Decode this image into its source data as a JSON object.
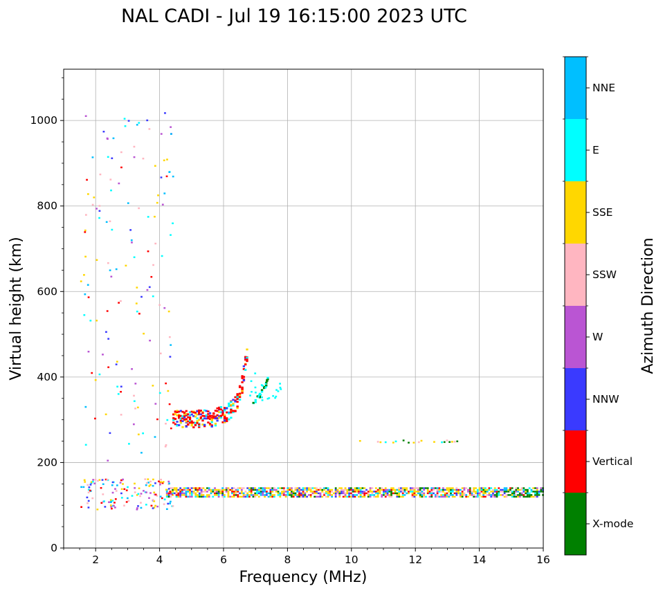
{
  "chart_data": {
    "type": "scatter",
    "title": "NAL CADI - Jul 19 16:15:00 2023 UTC",
    "xlabel": "Frequency (MHz)",
    "ylabel": "Virtual height (km)",
    "xlim": [
      1,
      16
    ],
    "ylim": [
      0,
      1120
    ],
    "xticks": [
      2,
      4,
      6,
      8,
      10,
      12,
      14,
      16
    ],
    "yticks": [
      0,
      200,
      400,
      600,
      800,
      1000
    ],
    "grid": true,
    "colorbar": {
      "label": "Azimuth Direction",
      "categories": [
        {
          "name": "NNE",
          "color": "#00bfff"
        },
        {
          "name": "E",
          "color": "#00ffff"
        },
        {
          "name": "SSE",
          "color": "#ffd700"
        },
        {
          "name": "SSW",
          "color": "#ffb6c1"
        },
        {
          "name": "W",
          "color": "#ba55d3"
        },
        {
          "name": "NNW",
          "color": "#3a3aff"
        },
        {
          "name": "Vertical",
          "color": "#ff0000"
        },
        {
          "name": "X-mode",
          "color": "#008000"
        }
      ]
    },
    "series": [
      {
        "name": "E-layer trace (mixed azimuths)",
        "description": "dense echoes from 4.2 to 16 MHz",
        "freq_range": [
          4.2,
          16
        ],
        "height_range": [
          118,
          140
        ]
      },
      {
        "name": "Low-frequency E echoes",
        "freq_range": [
          1.5,
          4.4
        ],
        "height_range": [
          88,
          160
        ]
      },
      {
        "name": "F-layer O-mode trace",
        "color_category": "Vertical",
        "points": [
          [
            4.4,
            300
          ],
          [
            4.8,
            300
          ],
          [
            5.2,
            300
          ],
          [
            5.6,
            302
          ],
          [
            6.0,
            310
          ],
          [
            6.2,
            322
          ],
          [
            6.4,
            340
          ],
          [
            6.55,
            380
          ],
          [
            6.7,
            450
          ]
        ]
      },
      {
        "name": "F-layer X-mode trace",
        "color_category": "X-mode",
        "points": [
          [
            6.9,
            335
          ],
          [
            7.1,
            355
          ],
          [
            7.3,
            380
          ],
          [
            7.35,
            395
          ]
        ]
      },
      {
        "name": "Sporadic echo band",
        "freq_range": [
          10,
          13.5
        ],
        "height_range": [
          244,
          250
        ]
      },
      {
        "name": "Scattered noise",
        "freq_range": [
          1.5,
          4.4
        ],
        "height_range": [
          200,
          1020
        ]
      }
    ]
  }
}
